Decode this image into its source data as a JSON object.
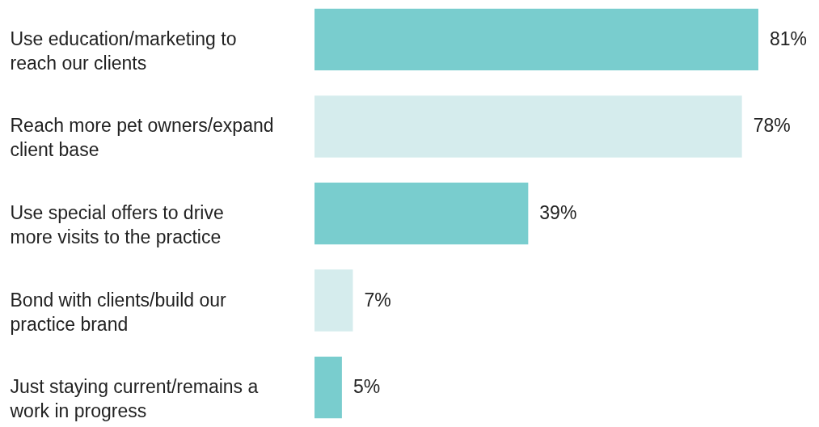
{
  "chart_data": {
    "type": "bar",
    "orientation": "horizontal",
    "categories": [
      "Use education/marketing to reach our clients",
      "Reach more pet owners/expand client base",
      "Use special offers to drive more visits to the practice",
      "Bond with clients/build our practice brand",
      "Just staying current/remains a work in progress"
    ],
    "values": [
      81,
      78,
      39,
      7,
      5
    ],
    "colors": [
      "#79cdce",
      "#d5eced",
      "#79cdce",
      "#d5eced",
      "#79cdce"
    ],
    "value_labels": [
      "81%",
      "78%",
      "39%",
      "7%",
      "5%"
    ],
    "grid": false
  }
}
